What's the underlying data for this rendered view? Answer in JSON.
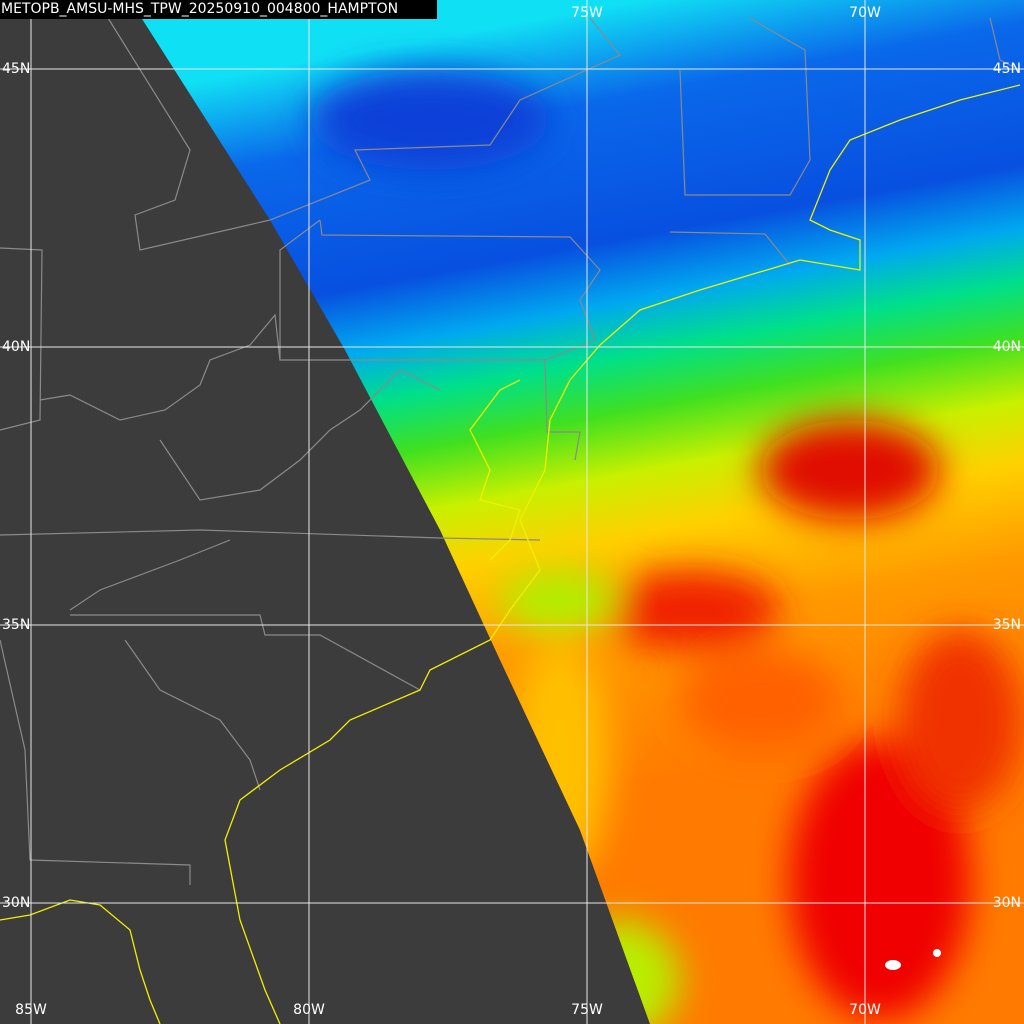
{
  "title": "METOPB_AMSU-MHS_TPW_20250910_004800_HAMPTON",
  "lon_lines": [
    {
      "value": -85,
      "label": "85W"
    },
    {
      "value": -80,
      "label": "80W"
    },
    {
      "value": -75,
      "label": "75W"
    },
    {
      "value": -70,
      "label": "70W"
    }
  ],
  "lat_lines": [
    {
      "value": 45,
      "label": "45N"
    },
    {
      "value": 40,
      "label": "40N"
    },
    {
      "value": 35,
      "label": "35N"
    },
    {
      "value": 30,
      "label": "30N"
    }
  ]
}
